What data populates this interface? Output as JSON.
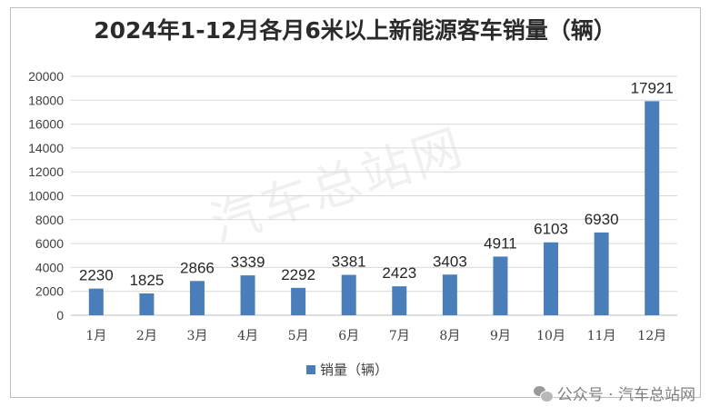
{
  "chart_data": {
    "type": "bar",
    "title": "2024年1-12月各月6米以上新能源客车销量（辆）",
    "categories": [
      "1月",
      "2月",
      "3月",
      "4月",
      "5月",
      "6月",
      "7月",
      "8月",
      "9月",
      "10月",
      "11月",
      "12月"
    ],
    "series": [
      {
        "name": "销量（辆）",
        "values": [
          2230,
          1825,
          2866,
          3339,
          2292,
          3381,
          2423,
          3403,
          4911,
          6103,
          6930,
          17921
        ]
      }
    ],
    "yticks": [
      "0",
      "2000",
      "4000",
      "6000",
      "8000",
      "10000",
      "12000",
      "14000",
      "16000",
      "18000",
      "20000"
    ],
    "ylim": [
      0,
      20000
    ],
    "grid": true,
    "legend": "bottom",
    "bar_color": "#4a7ebb"
  },
  "watermark": "汽车总站网",
  "footer": {
    "text": "公众号 · 汽车总站网",
    "icon": "wechat-icon"
  }
}
